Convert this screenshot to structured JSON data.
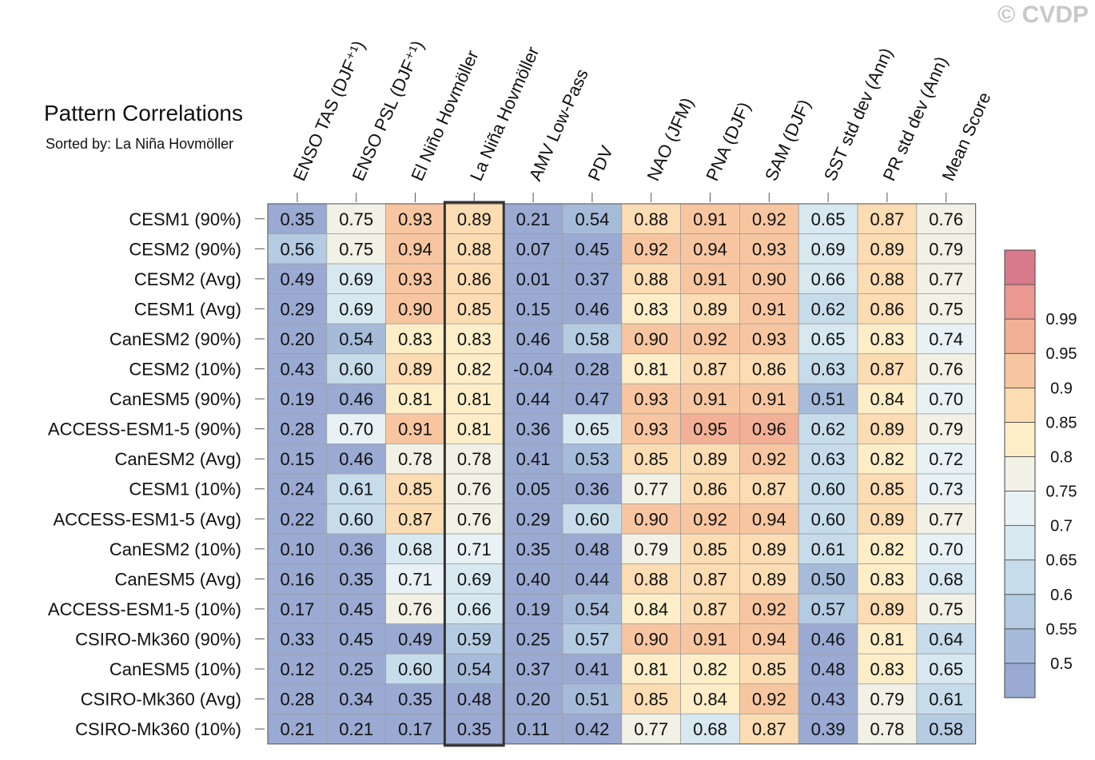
{
  "watermark": "© CVDP",
  "title": "Pattern Correlations",
  "subtitle": "Sorted by: La Niña Hovmöller",
  "chart_data": {
    "type": "heatmap",
    "columns": [
      "ENSO TAS (DJF⁺¹)",
      "ENSO PSL (DJF⁺¹)",
      "El Niño Hovmöller",
      "La Niña Hovmöller",
      "AMV Low-Pass",
      "PDV",
      "NAO (JFM)",
      "PNA (DJF)",
      "SAM (DJF)",
      "SST std dev (Ann)",
      "PR std dev (Ann)",
      "Mean Score"
    ],
    "rows": [
      "CESM1 (90%)",
      "CESM2 (90%)",
      "CESM2 (Avg)",
      "CESM1 (Avg)",
      "CanESM2 (90%)",
      "CESM2 (10%)",
      "CanESM5 (90%)",
      "ACCESS-ESM1-5 (90%)",
      "CanESM2 (Avg)",
      "CESM1 (10%)",
      "ACCESS-ESM1-5 (Avg)",
      "CanESM2 (10%)",
      "CanESM5 (Avg)",
      "ACCESS-ESM1-5 (10%)",
      "CSIRO-Mk360 (90%)",
      "CanESM5 (10%)",
      "CSIRO-Mk360 (Avg)",
      "CSIRO-Mk360 (10%)"
    ],
    "values": [
      [
        0.35,
        0.75,
        0.93,
        0.89,
        0.21,
        0.54,
        0.88,
        0.91,
        0.92,
        0.65,
        0.87,
        0.76
      ],
      [
        0.56,
        0.75,
        0.94,
        0.88,
        0.07,
        0.45,
        0.92,
        0.94,
        0.93,
        0.69,
        0.89,
        0.79
      ],
      [
        0.49,
        0.69,
        0.93,
        0.86,
        0.01,
        0.37,
        0.88,
        0.91,
        0.9,
        0.66,
        0.88,
        0.77
      ],
      [
        0.29,
        0.69,
        0.9,
        0.85,
        0.15,
        0.46,
        0.83,
        0.89,
        0.91,
        0.62,
        0.86,
        0.75
      ],
      [
        0.2,
        0.54,
        0.83,
        0.83,
        0.46,
        0.58,
        0.9,
        0.92,
        0.93,
        0.65,
        0.83,
        0.74
      ],
      [
        0.43,
        0.6,
        0.89,
        0.82,
        -0.04,
        0.28,
        0.81,
        0.87,
        0.86,
        0.63,
        0.87,
        0.76
      ],
      [
        0.19,
        0.46,
        0.81,
        0.81,
        0.44,
        0.47,
        0.93,
        0.91,
        0.91,
        0.51,
        0.84,
        0.7
      ],
      [
        0.28,
        0.7,
        0.91,
        0.81,
        0.36,
        0.65,
        0.93,
        0.95,
        0.96,
        0.62,
        0.89,
        0.79
      ],
      [
        0.15,
        0.46,
        0.78,
        0.78,
        0.41,
        0.53,
        0.85,
        0.89,
        0.92,
        0.63,
        0.82,
        0.72
      ],
      [
        0.24,
        0.61,
        0.85,
        0.76,
        0.05,
        0.36,
        0.77,
        0.86,
        0.87,
        0.6,
        0.85,
        0.73
      ],
      [
        0.22,
        0.6,
        0.87,
        0.76,
        0.29,
        0.6,
        0.9,
        0.92,
        0.94,
        0.6,
        0.89,
        0.77
      ],
      [
        0.1,
        0.36,
        0.68,
        0.71,
        0.35,
        0.48,
        0.79,
        0.85,
        0.89,
        0.61,
        0.82,
        0.7
      ],
      [
        0.16,
        0.35,
        0.71,
        0.69,
        0.4,
        0.44,
        0.88,
        0.87,
        0.89,
        0.5,
        0.83,
        0.68
      ],
      [
        0.17,
        0.45,
        0.76,
        0.66,
        0.19,
        0.54,
        0.84,
        0.87,
        0.92,
        0.57,
        0.89,
        0.75
      ],
      [
        0.33,
        0.45,
        0.49,
        0.59,
        0.25,
        0.57,
        0.9,
        0.91,
        0.94,
        0.46,
        0.81,
        0.64
      ],
      [
        0.12,
        0.25,
        0.6,
        0.54,
        0.37,
        0.41,
        0.81,
        0.82,
        0.85,
        0.48,
        0.83,
        0.65
      ],
      [
        0.28,
        0.34,
        0.35,
        0.48,
        0.2,
        0.51,
        0.85,
        0.84,
        0.92,
        0.43,
        0.79,
        0.61
      ],
      [
        0.21,
        0.21,
        0.17,
        0.35,
        0.11,
        0.42,
        0.77,
        0.68,
        0.87,
        0.39,
        0.78,
        0.58
      ]
    ],
    "highlighted_column": "La Niña Hovmöller",
    "colorbar": {
      "levels": [
        0.5,
        0.55,
        0.6,
        0.65,
        0.7,
        0.75,
        0.8,
        0.85,
        0.9,
        0.95,
        0.99
      ],
      "tick_labels": [
        "0.5",
        "0.55",
        "0.6",
        "0.65",
        "0.7",
        "0.75",
        "0.8",
        "0.85",
        "0.9",
        "0.95",
        "0.99"
      ],
      "colors": [
        "#9aaad2",
        "#a6bbd9",
        "#b4cbe2",
        "#c6dcea",
        "#d8e8f0",
        "#e8f2f4",
        "#f2f1e6",
        "#fdeec8",
        "#fcdcb2",
        "#f7c6a0",
        "#f2b096",
        "#eb9891",
        "#d87a8c"
      ]
    }
  }
}
